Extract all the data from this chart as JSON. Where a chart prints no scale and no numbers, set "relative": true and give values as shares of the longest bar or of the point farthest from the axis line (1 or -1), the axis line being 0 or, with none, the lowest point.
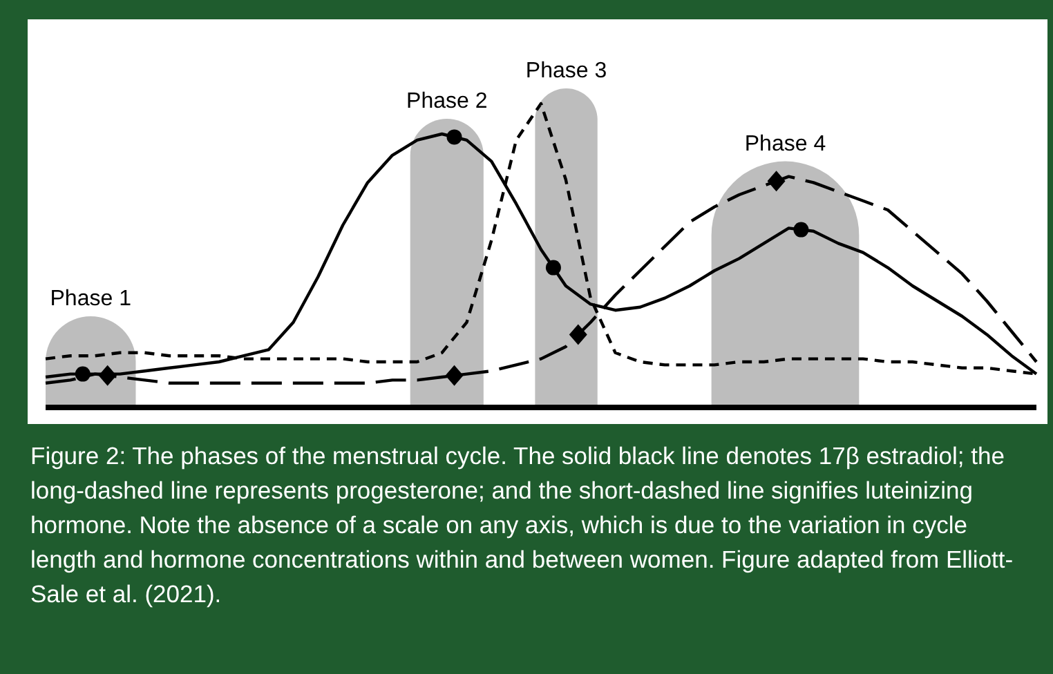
{
  "chart_data": {
    "type": "line",
    "relative": true,
    "categories": [
      null,
      null,
      null,
      null,
      null,
      null,
      null,
      null,
      null,
      null,
      null,
      null,
      null,
      null,
      null,
      null,
      null,
      null,
      null,
      null,
      null,
      null,
      null,
      null,
      null,
      null,
      null,
      null,
      null,
      null,
      null,
      null,
      null,
      null,
      null,
      null,
      null,
      null,
      null,
      null,
      null
    ],
    "series": [
      {
        "color": "#000000",
        "line_style": "solid",
        "values": [
          0.1,
          0.11,
          0.11,
          0.11,
          0.12,
          0.13,
          0.14,
          0.15,
          0.17,
          0.19,
          0.28,
          0.43,
          0.6,
          0.74,
          0.83,
          0.88,
          0.9,
          0.88,
          0.81,
          0.67,
          0.52,
          0.4,
          0.34,
          0.32,
          0.33,
          0.36,
          0.4,
          0.45,
          0.49,
          0.54,
          0.59,
          0.58,
          0.54,
          0.51,
          0.46,
          0.4,
          0.35,
          0.3,
          0.24,
          0.17,
          0.11
        ]
      },
      {
        "color": "#000000",
        "line_style": "dashed",
        "values": [
          0.08,
          0.09,
          0.11,
          0.1,
          0.09,
          0.08,
          0.08,
          0.08,
          0.08,
          0.08,
          0.08,
          0.08,
          0.08,
          0.08,
          0.09,
          0.09,
          0.1,
          0.11,
          0.12,
          0.14,
          0.16,
          0.2,
          0.28,
          0.37,
          0.45,
          0.53,
          0.61,
          0.66,
          0.7,
          0.73,
          0.76,
          0.74,
          0.71,
          0.68,
          0.65,
          0.58,
          0.51,
          0.44,
          0.35,
          0.25,
          0.15
        ]
      },
      {
        "color": "#000000",
        "line_style": "dotted",
        "values": [
          0.16,
          0.17,
          0.17,
          0.18,
          0.18,
          0.17,
          0.17,
          0.17,
          0.16,
          0.16,
          0.16,
          0.16,
          0.16,
          0.15,
          0.15,
          0.15,
          0.18,
          0.28,
          0.55,
          0.88,
          1,
          0.75,
          0.36,
          0.18,
          0.15,
          0.14,
          0.14,
          0.14,
          0.15,
          0.15,
          0.16,
          0.16,
          0.16,
          0.16,
          0.15,
          0.15,
          0.14,
          0.13,
          0.13,
          0.12,
          0.11
        ]
      }
    ],
    "annotations": [
      "Phase 1",
      "Phase 2",
      "Phase 3",
      "Phase 4",
      "Figure 2: The phases of the menstrual cycle. The solid black line denotes 17β estradiol; the long-dashed line represents progesterone; and the short-dashed line signifies luteinizing hormone. Note the absence of a scale on any axis, which is due to the variation in cycle length and hormone concentrations within and between women. Figure adapted from Elliott-Sale et al. (2021)."
    ]
  }
}
